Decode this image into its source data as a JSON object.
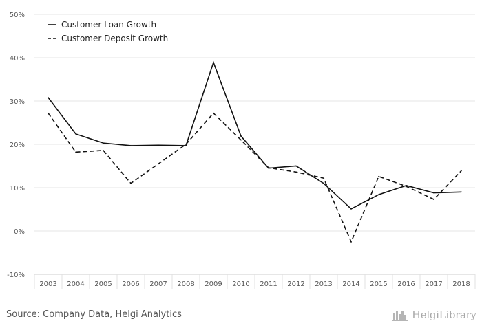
{
  "chart_data": {
    "type": "line",
    "categories": [
      "2003",
      "2004",
      "2005",
      "2006",
      "2007",
      "2008",
      "2009",
      "2010",
      "2011",
      "2012",
      "2013",
      "2014",
      "2015",
      "2016",
      "2017",
      "2018"
    ],
    "series": [
      {
        "name": "Customer Loan Growth",
        "style": "solid",
        "values": [
          30.8,
          22.4,
          20.3,
          19.7,
          19.8,
          19.7,
          38.9,
          21.9,
          14.5,
          15.0,
          11.0,
          5.1,
          8.4,
          10.5,
          8.8,
          9.0
        ]
      },
      {
        "name": "Customer Deposit Growth",
        "style": "dashed",
        "values": [
          27.2,
          18.2,
          18.6,
          11.0,
          15.5,
          20.0,
          27.2,
          21.0,
          14.6,
          13.6,
          12.2,
          -2.5,
          12.6,
          10.3,
          7.3,
          13.9
        ]
      }
    ],
    "ylim": [
      -10,
      50
    ],
    "yticks": [
      -10,
      0,
      10,
      20,
      30,
      40,
      50
    ],
    "ytick_labels": [
      "-10%",
      "0%",
      "10%",
      "20%",
      "30%",
      "40%",
      "50%"
    ],
    "grid": true,
    "legend": "top-left",
    "line_color": "#111111",
    "grid_color": "#e6e6e6"
  },
  "footer": {
    "source": "Source: Company Data, Helgi Analytics",
    "brand": "HelgiLibrary"
  }
}
